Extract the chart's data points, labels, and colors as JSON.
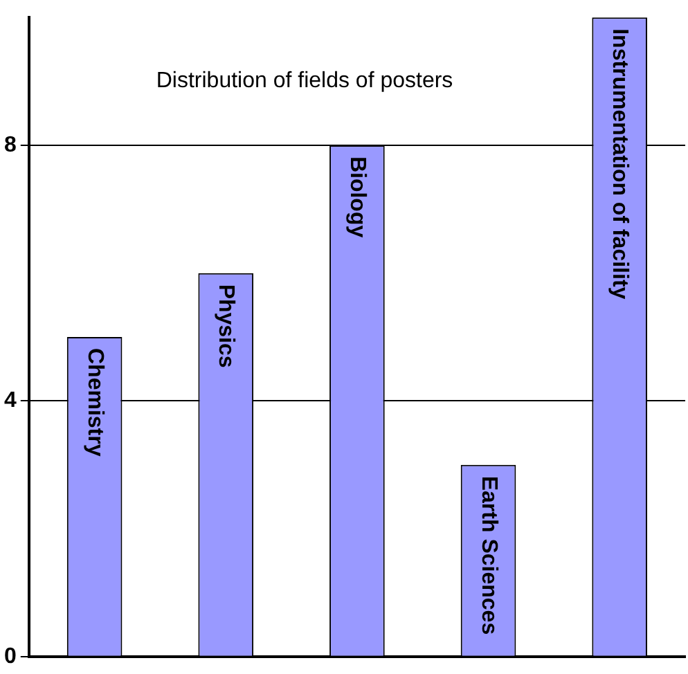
{
  "chart_data": {
    "type": "bar",
    "title": "Distribution of fields of posters",
    "categories": [
      "Chemistry",
      "Physics",
      "Biology",
      "Earth Sciences",
      "Instrumentation of facility"
    ],
    "values": [
      5,
      6,
      8,
      3,
      10
    ],
    "color": "#9999ff",
    "ylim": [
      0,
      10
    ],
    "yticks": [
      0,
      4,
      8
    ],
    "grid": "y",
    "legend": false
  }
}
